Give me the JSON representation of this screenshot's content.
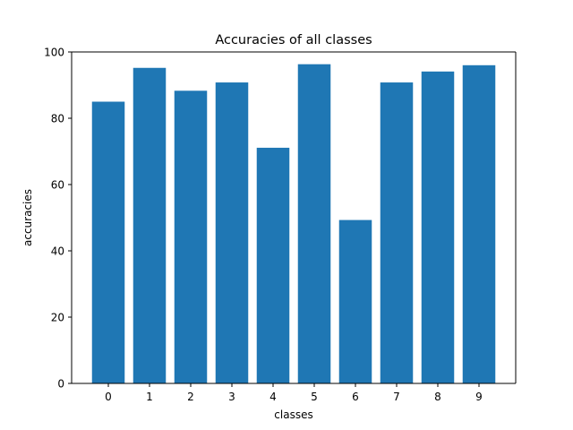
{
  "chart_data": {
    "type": "bar",
    "title": "Accuracies of all classes",
    "xlabel": "classes",
    "ylabel": "accuracies",
    "categories": [
      "0",
      "1",
      "2",
      "3",
      "4",
      "5",
      "6",
      "7",
      "8",
      "9"
    ],
    "values": [
      85.0,
      95.2,
      88.3,
      90.8,
      71.1,
      96.3,
      49.3,
      90.8,
      94.1,
      96.0
    ],
    "ylim": [
      0,
      100
    ],
    "yticks": [
      "0",
      "20",
      "40",
      "60",
      "80",
      "100"
    ],
    "grid": false,
    "legend": "none",
    "bar_color": "#1f77b4"
  }
}
